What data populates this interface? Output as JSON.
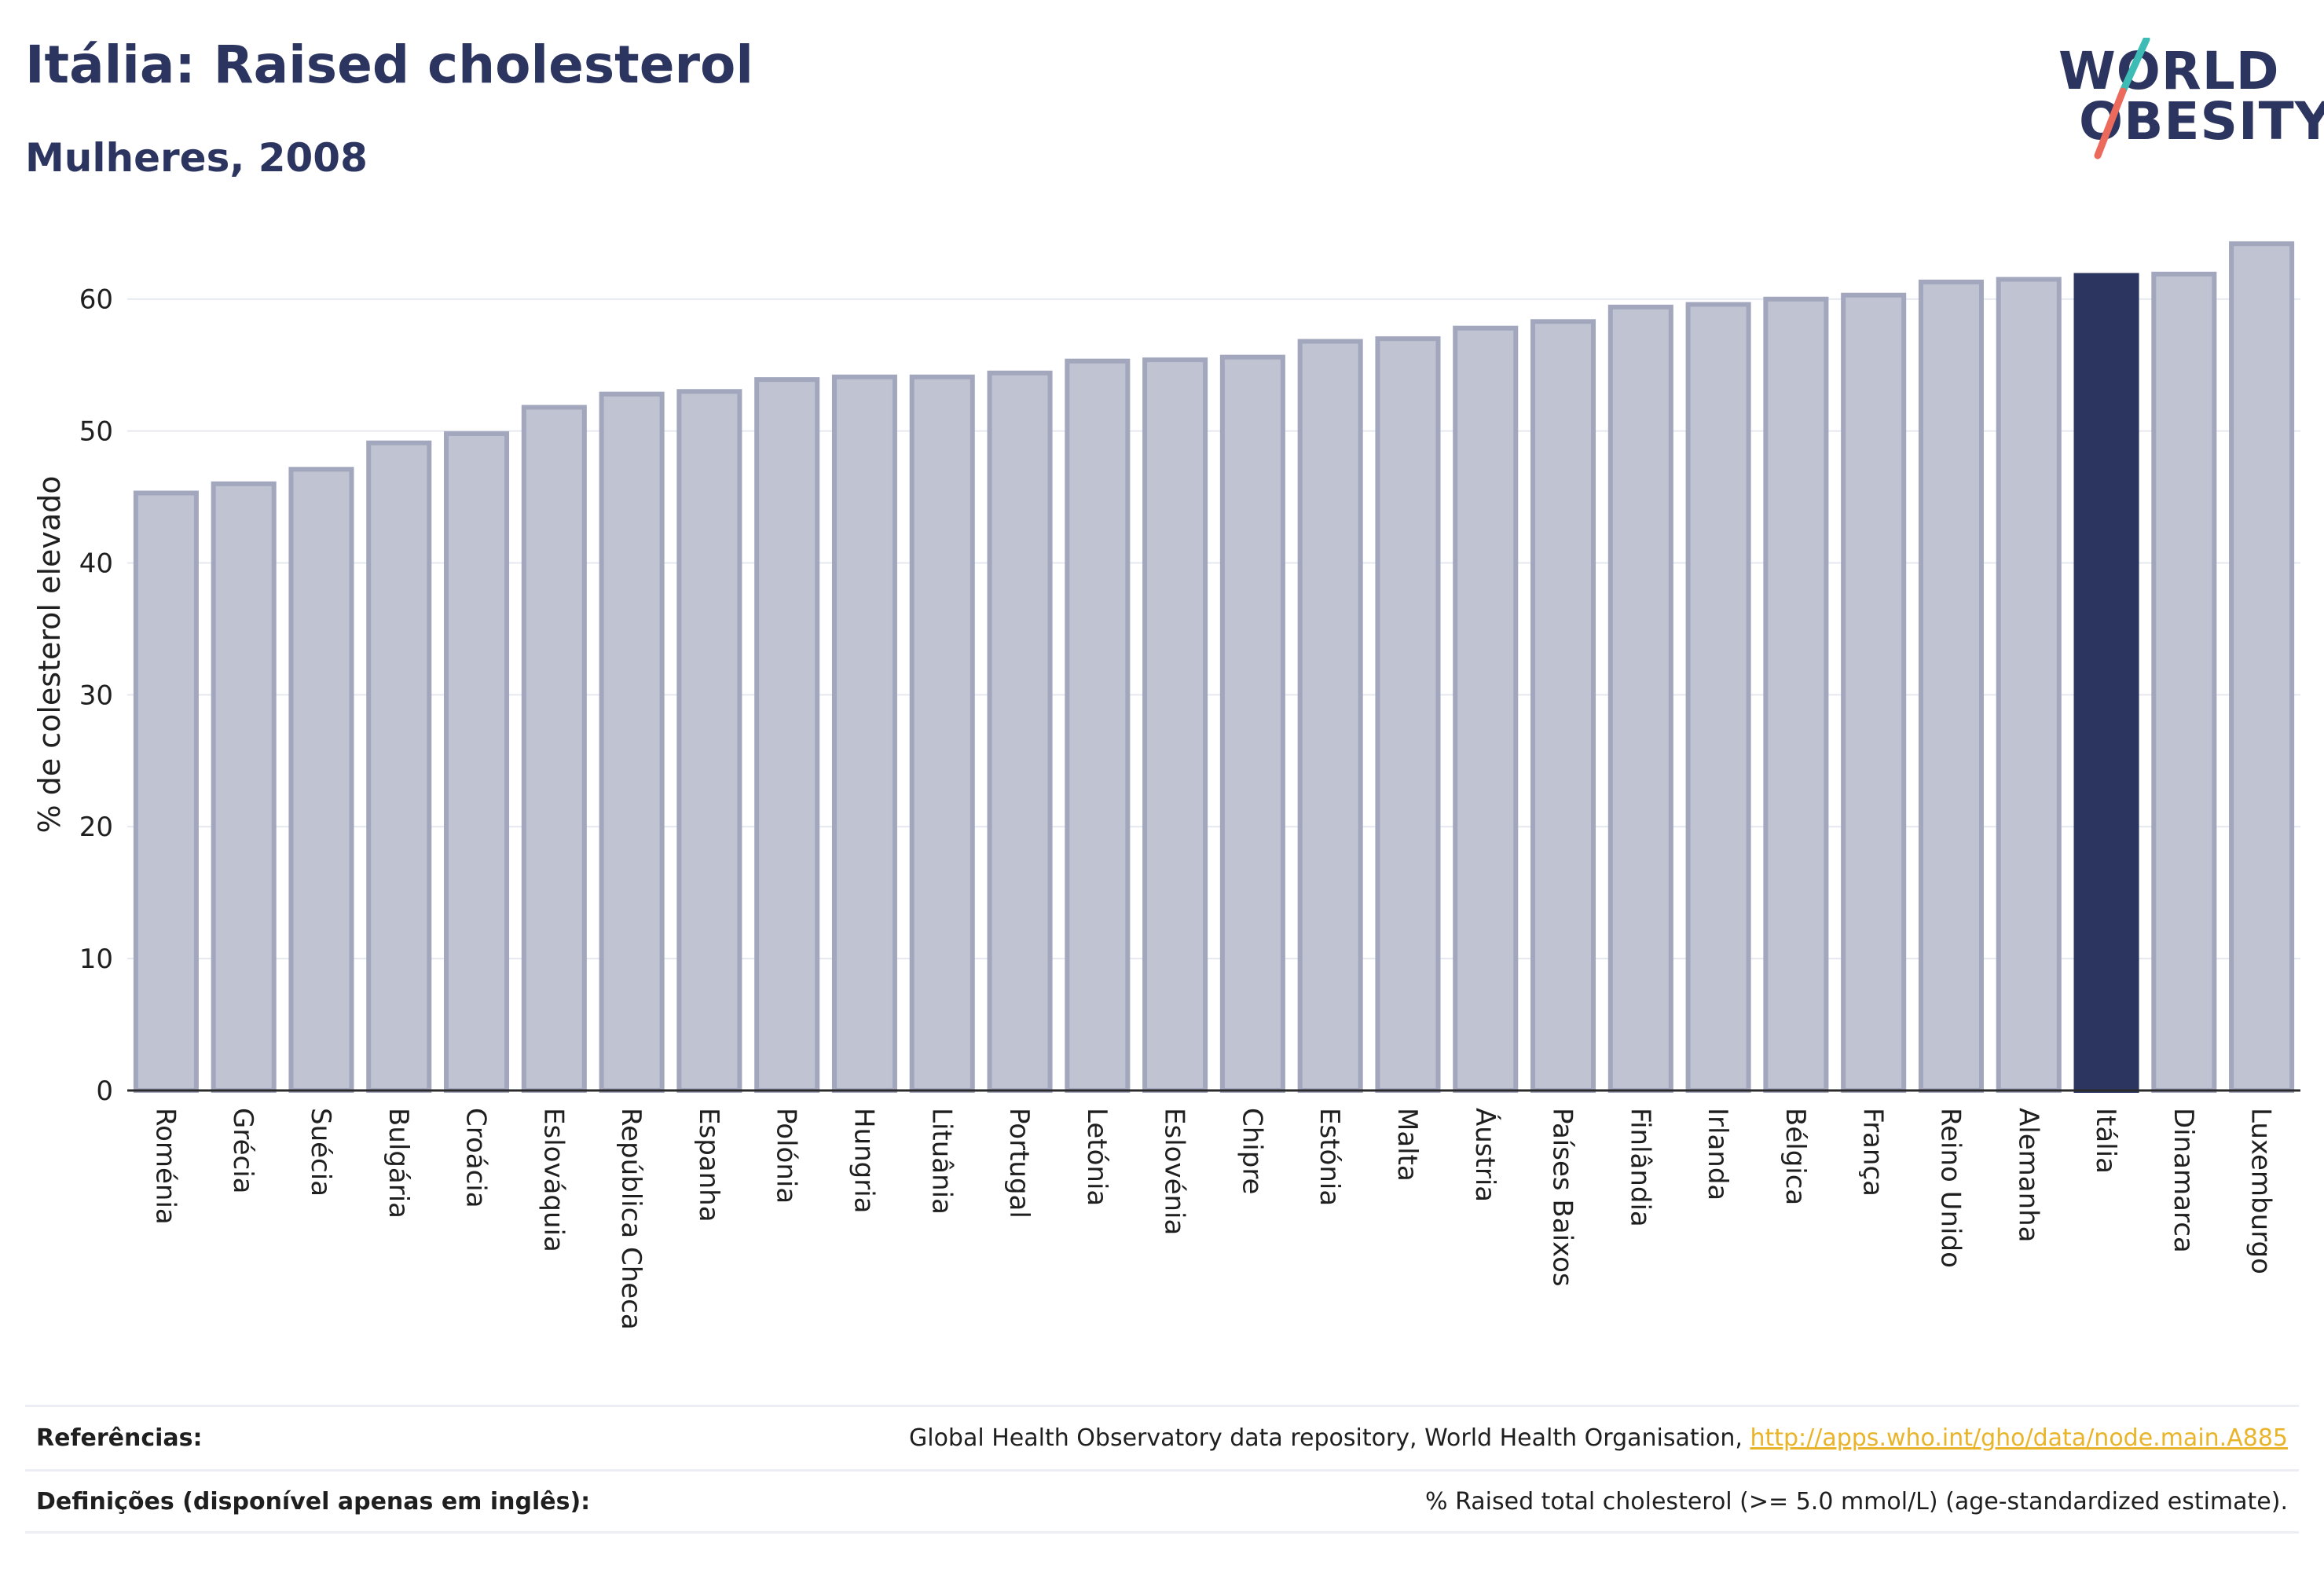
{
  "header": {
    "title": "Itália: Raised cholesterol",
    "subtitle": "Mulheres, 2008"
  },
  "logo": {
    "line1": "WORLD",
    "line2": "OBESITY",
    "colors": {
      "text": "#2c3560",
      "slash_teal": "#3cbcb4",
      "slash_coral": "#ec6a5c"
    }
  },
  "colors": {
    "bar_default": "#c0c3d1",
    "bar_default_stroke": "#a2a7bd",
    "bar_highlight": "#2b355f",
    "grid": "#e6e8ef",
    "axis": "#2b2b2b"
  },
  "chart_data": {
    "type": "bar",
    "title": "Itália: Raised cholesterol",
    "subtitle": "Mulheres, 2008",
    "xlabel": "",
    "ylabel": "% de colesterol elevado",
    "ylim": [
      0,
      66
    ],
    "yticks": [
      0,
      10,
      20,
      30,
      40,
      50,
      60
    ],
    "grid": true,
    "highlight": "Itália",
    "categories": [
      "Roménia",
      "Grécia",
      "Suécia",
      "Bulgária",
      "Croácia",
      "Eslováquia",
      "República Checa",
      "Espanha",
      "Polónia",
      "Hungria",
      "Lituânia",
      "Portugal",
      "Letónia",
      "Eslovénia",
      "Chipre",
      "Estónia",
      "Malta",
      "Áustria",
      "Países Baixos",
      "Finlândia",
      "Irlanda",
      "Bélgica",
      "França",
      "Reino Unido",
      "Alemanha",
      "Itália",
      "Dinamarca",
      "Luxemburgo"
    ],
    "values": [
      45.3,
      46.0,
      47.1,
      49.1,
      49.8,
      51.8,
      52.8,
      53.0,
      53.9,
      54.1,
      54.1,
      54.4,
      55.3,
      55.4,
      55.6,
      56.8,
      57.0,
      57.8,
      58.3,
      59.4,
      59.6,
      60.0,
      60.3,
      61.3,
      61.5,
      61.8,
      61.9,
      64.2
    ]
  },
  "footer": {
    "references_label": "Referências:",
    "references_text": "Global Health Observatory data repository, World Health Organisation,",
    "references_link": "http://apps.who.int/gho/data/node.main.A885",
    "definitions_label": "Definições (disponível apenas em inglês):",
    "definitions_text": "% Raised total cholesterol (>= 5.0 mmol/L) (age-standardized estimate)."
  }
}
